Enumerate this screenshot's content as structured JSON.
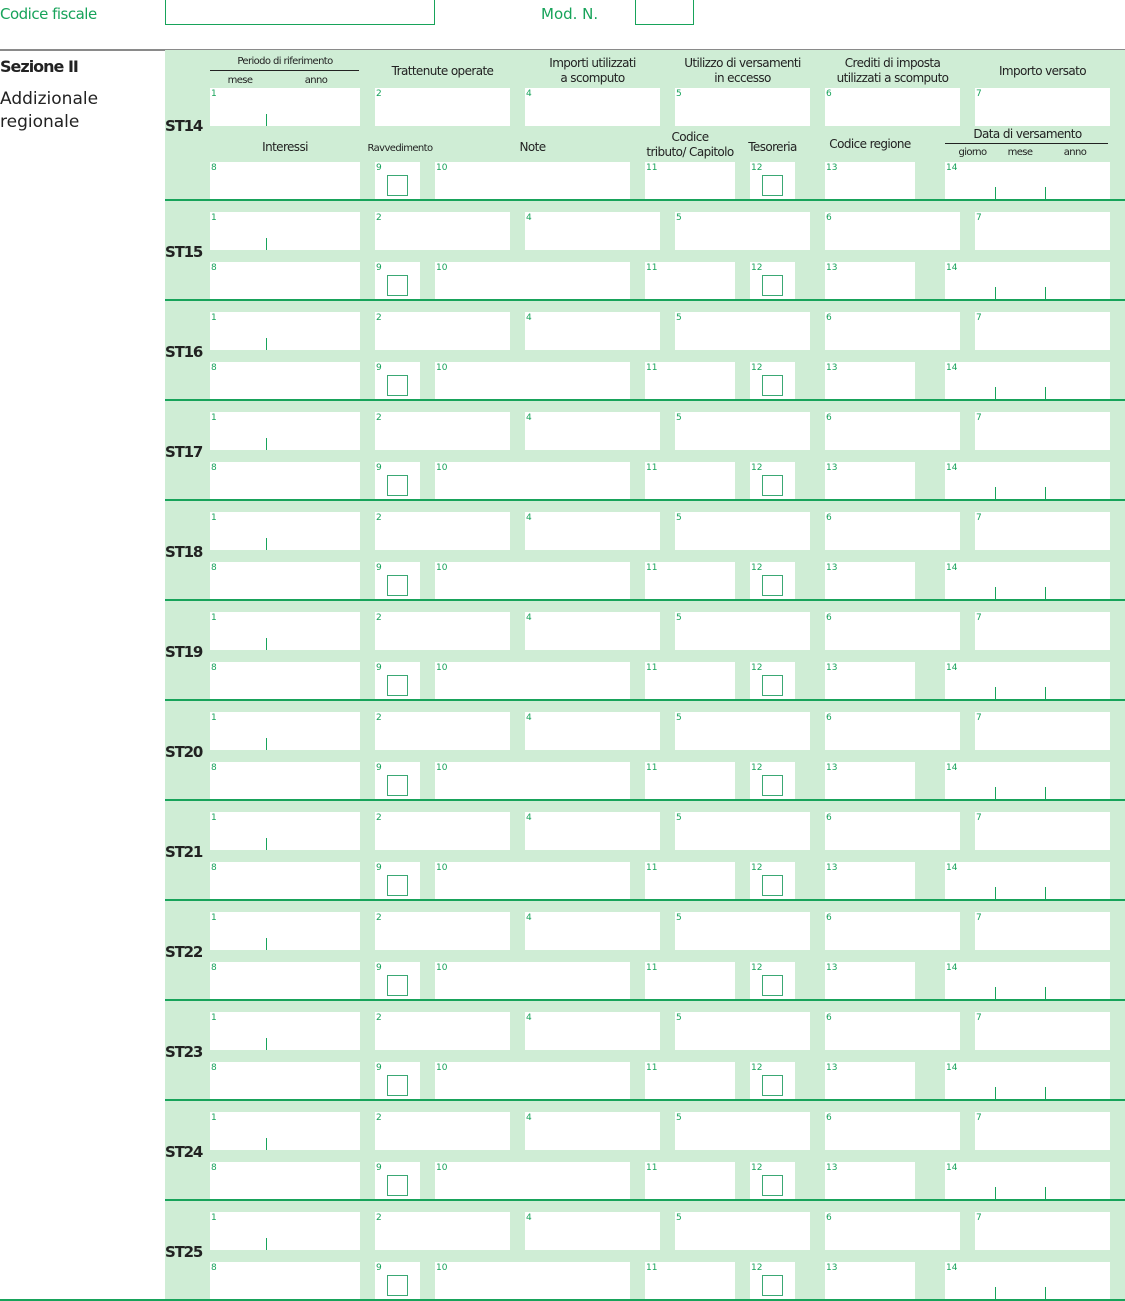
{
  "header": {
    "codice_fiscale_label": "Codice fiscale",
    "codice_fiscale_value": "",
    "mod_n_label": "Mod. N.",
    "mod_n_value": ""
  },
  "section": {
    "title": "Sezione II",
    "subtitle_line1": "Addizionale",
    "subtitle_line2": "regionale"
  },
  "columns": {
    "periodo": "Periodo di riferimento",
    "mese": "mese",
    "anno": "anno",
    "trattenute": "Trattenute operate",
    "importi_l1": "Importi utilizzati",
    "importi_l2": "a scomputo",
    "utilizzo_l1": "Utilizzo di versamenti",
    "utilizzo_l2": "in eccesso",
    "crediti_l1": "Crediti di imposta",
    "crediti_l2": "utilizzati a scomputo",
    "importo_versato": "Importo versato",
    "interessi": "Interessi",
    "ravvedimento": "Ravvedimento",
    "note": "Note",
    "codice_l1": "Codice",
    "codice_l2": "tributo/ Capitolo",
    "tesoreria": "Tesoreria",
    "codice_regione": "Codice regione",
    "data_versamento": "Data di versamento",
    "giorno": "giorno",
    "mese2": "mese",
    "anno2": "anno"
  },
  "field_numbers": {
    "f1": "1",
    "f2": "2",
    "f4": "4",
    "f5": "5",
    "f6": "6",
    "f7": "7",
    "f8": "8",
    "f9": "9",
    "f10": "10",
    "f11": "11",
    "f12": "12",
    "f13": "13",
    "f14": "14"
  },
  "rows": [
    {
      "code": "ST14"
    },
    {
      "code": "ST15"
    },
    {
      "code": "ST16"
    },
    {
      "code": "ST17"
    },
    {
      "code": "ST18"
    },
    {
      "code": "ST19"
    },
    {
      "code": "ST20"
    },
    {
      "code": "ST21"
    },
    {
      "code": "ST22"
    },
    {
      "code": "ST23"
    },
    {
      "code": "ST24"
    },
    {
      "code": "ST25"
    }
  ],
  "colors": {
    "accent": "#17a35a",
    "panel": "#cfedd5"
  }
}
